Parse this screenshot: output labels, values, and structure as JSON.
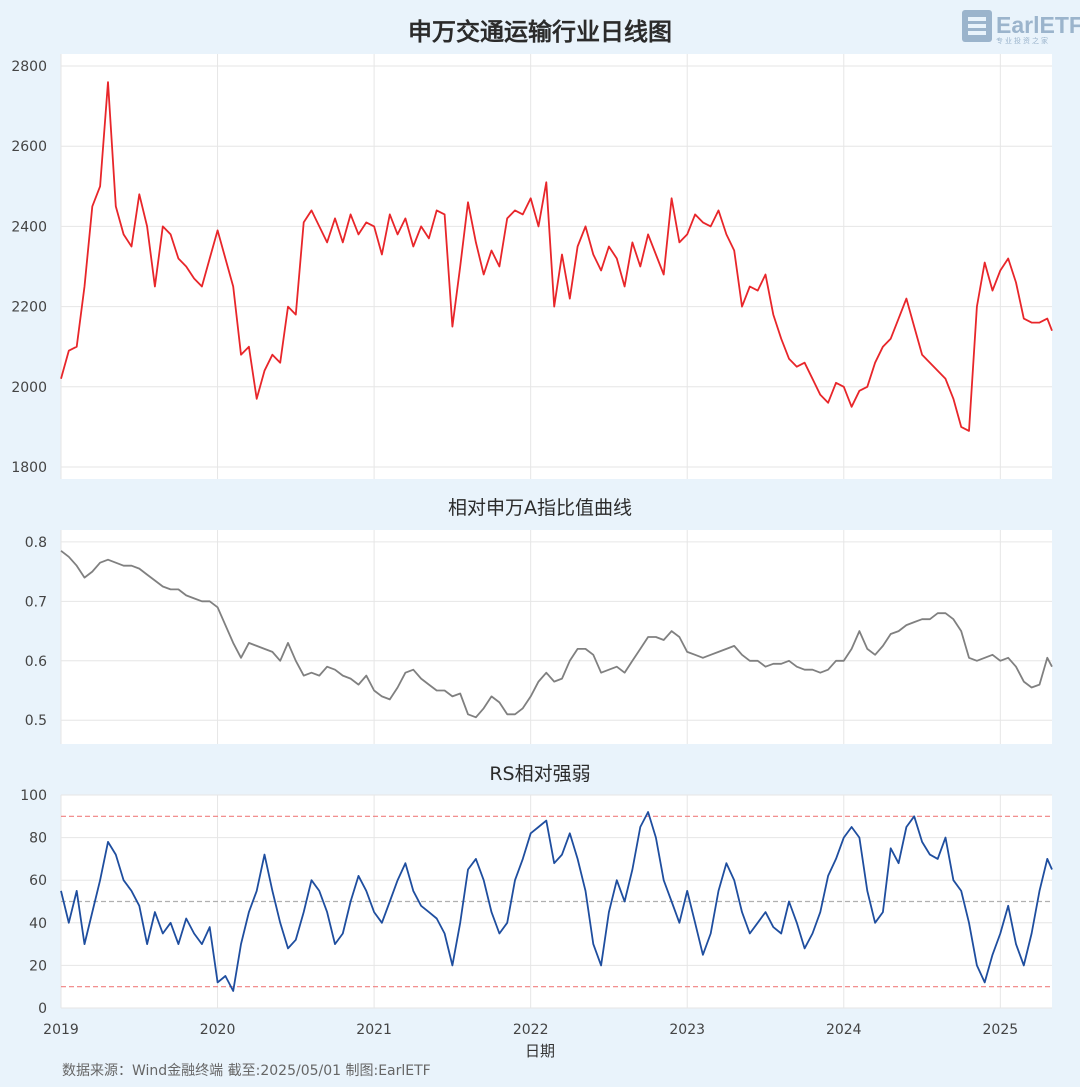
{
  "logo": {
    "text": "EarlETF",
    "subtext": "专业投资之家"
  },
  "footer": {
    "xlabel": "日期",
    "source": "数据来源：Wind金融终端 截至:2025/05/01 制图:EarlETF"
  },
  "chart_data": [
    {
      "type": "line",
      "title": "申万交通运输行业日线图",
      "color": "#e8262a",
      "ylim": [
        1770,
        2830
      ],
      "yticks": [
        1800,
        2000,
        2200,
        2400,
        2600,
        2800
      ],
      "grid": true,
      "x": [
        2019.0,
        2019.05,
        2019.1,
        2019.15,
        2019.2,
        2019.25,
        2019.3,
        2019.35,
        2019.4,
        2019.45,
        2019.5,
        2019.55,
        2019.6,
        2019.65,
        2019.7,
        2019.75,
        2019.8,
        2019.85,
        2019.9,
        2019.95,
        2020.0,
        2020.05,
        2020.1,
        2020.15,
        2020.2,
        2020.25,
        2020.3,
        2020.35,
        2020.4,
        2020.45,
        2020.5,
        2020.55,
        2020.6,
        2020.65,
        2020.7,
        2020.75,
        2020.8,
        2020.85,
        2020.9,
        2020.95,
        2021.0,
        2021.05,
        2021.1,
        2021.15,
        2021.2,
        2021.25,
        2021.3,
        2021.35,
        2021.4,
        2021.45,
        2021.5,
        2021.55,
        2021.6,
        2021.65,
        2021.7,
        2021.75,
        2021.8,
        2021.85,
        2021.9,
        2021.95,
        2022.0,
        2022.05,
        2022.1,
        2022.15,
        2022.2,
        2022.25,
        2022.3,
        2022.35,
        2022.4,
        2022.45,
        2022.5,
        2022.55,
        2022.6,
        2022.65,
        2022.7,
        2022.75,
        2022.8,
        2022.85,
        2022.9,
        2022.95,
        2023.0,
        2023.05,
        2023.1,
        2023.15,
        2023.2,
        2023.25,
        2023.3,
        2023.35,
        2023.4,
        2023.45,
        2023.5,
        2023.55,
        2023.6,
        2023.65,
        2023.7,
        2023.75,
        2023.8,
        2023.85,
        2023.9,
        2023.95,
        2024.0,
        2024.05,
        2024.1,
        2024.15,
        2024.2,
        2024.25,
        2024.3,
        2024.35,
        2024.4,
        2024.45,
        2024.5,
        2024.55,
        2024.6,
        2024.65,
        2024.7,
        2024.75,
        2024.8,
        2024.85,
        2024.9,
        2024.95,
        2025.0,
        2025.05,
        2025.1,
        2025.15,
        2025.2,
        2025.25,
        2025.3,
        2025.33
      ],
      "y": [
        2020,
        2090,
        2100,
        2250,
        2450,
        2500,
        2760,
        2450,
        2380,
        2350,
        2480,
        2400,
        2250,
        2400,
        2380,
        2320,
        2300,
        2270,
        2250,
        2320,
        2390,
        2320,
        2250,
        2080,
        2100,
        1970,
        2040,
        2080,
        2060,
        2200,
        2180,
        2410,
        2440,
        2400,
        2360,
        2420,
        2360,
        2430,
        2380,
        2410,
        2400,
        2330,
        2430,
        2380,
        2420,
        2350,
        2400,
        2370,
        2440,
        2430,
        2150,
        2300,
        2460,
        2360,
        2280,
        2340,
        2300,
        2420,
        2440,
        2430,
        2470,
        2400,
        2510,
        2200,
        2330,
        2220,
        2350,
        2400,
        2330,
        2290,
        2350,
        2320,
        2250,
        2360,
        2300,
        2380,
        2330,
        2280,
        2470,
        2360,
        2380,
        2430,
        2410,
        2400,
        2440,
        2380,
        2340,
        2200,
        2250,
        2240,
        2280,
        2180,
        2120,
        2070,
        2050,
        2060,
        2020,
        1980,
        1960,
        2010,
        2000,
        1950,
        1990,
        2000,
        2060,
        2100,
        2120,
        2170,
        2220,
        2150,
        2080,
        2060,
        2040,
        2020,
        1970,
        1900,
        1890,
        2200,
        2310,
        2240,
        2290,
        2320,
        2260,
        2170,
        2160,
        2160,
        2170,
        2140
      ]
    },
    {
      "type": "line",
      "title": "相对申万A指比值曲线",
      "color": "#808080",
      "ylim": [
        0.46,
        0.82
      ],
      "yticks": [
        0.5,
        0.6,
        0.7,
        0.8
      ],
      "grid": true,
      "x": [
        2019.0,
        2019.05,
        2019.1,
        2019.15,
        2019.2,
        2019.25,
        2019.3,
        2019.35,
        2019.4,
        2019.45,
        2019.5,
        2019.55,
        2019.6,
        2019.65,
        2019.7,
        2019.75,
        2019.8,
        2019.85,
        2019.9,
        2019.95,
        2020.0,
        2020.05,
        2020.1,
        2020.15,
        2020.2,
        2020.25,
        2020.3,
        2020.35,
        2020.4,
        2020.45,
        2020.5,
        2020.55,
        2020.6,
        2020.65,
        2020.7,
        2020.75,
        2020.8,
        2020.85,
        2020.9,
        2020.95,
        2021.0,
        2021.05,
        2021.1,
        2021.15,
        2021.2,
        2021.25,
        2021.3,
        2021.35,
        2021.4,
        2021.45,
        2021.5,
        2021.55,
        2021.6,
        2021.65,
        2021.7,
        2021.75,
        2021.8,
        2021.85,
        2021.9,
        2021.95,
        2022.0,
        2022.05,
        2022.1,
        2022.15,
        2022.2,
        2022.25,
        2022.3,
        2022.35,
        2022.4,
        2022.45,
        2022.5,
        2022.55,
        2022.6,
        2022.65,
        2022.7,
        2022.75,
        2022.8,
        2022.85,
        2022.9,
        2022.95,
        2023.0,
        2023.05,
        2023.1,
        2023.15,
        2023.2,
        2023.25,
        2023.3,
        2023.35,
        2023.4,
        2023.45,
        2023.5,
        2023.55,
        2023.6,
        2023.65,
        2023.7,
        2023.75,
        2023.8,
        2023.85,
        2023.9,
        2023.95,
        2024.0,
        2024.05,
        2024.1,
        2024.15,
        2024.2,
        2024.25,
        2024.3,
        2024.35,
        2024.4,
        2024.45,
        2024.5,
        2024.55,
        2024.6,
        2024.65,
        2024.7,
        2024.75,
        2024.8,
        2024.85,
        2024.9,
        2024.95,
        2025.0,
        2025.05,
        2025.1,
        2025.15,
        2025.2,
        2025.25,
        2025.3,
        2025.33
      ],
      "y": [
        0.785,
        0.775,
        0.76,
        0.74,
        0.75,
        0.765,
        0.77,
        0.765,
        0.76,
        0.76,
        0.755,
        0.745,
        0.735,
        0.725,
        0.72,
        0.72,
        0.71,
        0.705,
        0.7,
        0.7,
        0.69,
        0.66,
        0.63,
        0.605,
        0.63,
        0.625,
        0.62,
        0.615,
        0.6,
        0.63,
        0.6,
        0.575,
        0.58,
        0.575,
        0.59,
        0.585,
        0.575,
        0.57,
        0.56,
        0.575,
        0.55,
        0.54,
        0.535,
        0.555,
        0.58,
        0.585,
        0.57,
        0.56,
        0.55,
        0.55,
        0.54,
        0.545,
        0.51,
        0.505,
        0.52,
        0.54,
        0.53,
        0.51,
        0.51,
        0.52,
        0.54,
        0.565,
        0.58,
        0.565,
        0.57,
        0.6,
        0.62,
        0.62,
        0.61,
        0.58,
        0.585,
        0.59,
        0.58,
        0.6,
        0.62,
        0.64,
        0.64,
        0.635,
        0.65,
        0.64,
        0.615,
        0.61,
        0.605,
        0.61,
        0.615,
        0.62,
        0.625,
        0.61,
        0.6,
        0.6,
        0.59,
        0.595,
        0.595,
        0.6,
        0.59,
        0.585,
        0.585,
        0.58,
        0.585,
        0.6,
        0.6,
        0.62,
        0.65,
        0.62,
        0.61,
        0.625,
        0.645,
        0.65,
        0.66,
        0.665,
        0.67,
        0.67,
        0.68,
        0.68,
        0.67,
        0.65,
        0.605,
        0.6,
        0.605,
        0.61,
        0.6,
        0.605,
        0.59,
        0.565,
        0.555,
        0.56,
        0.605,
        0.59
      ]
    },
    {
      "type": "line",
      "title": "RS相对强弱",
      "color": "#1f4e9f",
      "ylim": [
        0,
        100
      ],
      "yticks": [
        0,
        20,
        40,
        60,
        80,
        100
      ],
      "grid": true,
      "reference_lines": [
        {
          "y": 90,
          "color": "#f08080",
          "style": "dashed"
        },
        {
          "y": 50,
          "color": "#b0b0b0",
          "style": "dashed"
        },
        {
          "y": 10,
          "color": "#f08080",
          "style": "dashed"
        }
      ],
      "xticks": [
        "2019",
        "2020",
        "2021",
        "2022",
        "2023",
        "2024",
        "2025"
      ],
      "xlim": [
        2019.0,
        2025.33
      ],
      "x": [
        2019.0,
        2019.05,
        2019.1,
        2019.15,
        2019.2,
        2019.25,
        2019.3,
        2019.35,
        2019.4,
        2019.45,
        2019.5,
        2019.55,
        2019.6,
        2019.65,
        2019.7,
        2019.75,
        2019.8,
        2019.85,
        2019.9,
        2019.95,
        2020.0,
        2020.05,
        2020.1,
        2020.15,
        2020.2,
        2020.25,
        2020.3,
        2020.35,
        2020.4,
        2020.45,
        2020.5,
        2020.55,
        2020.6,
        2020.65,
        2020.7,
        2020.75,
        2020.8,
        2020.85,
        2020.9,
        2020.95,
        2021.0,
        2021.05,
        2021.1,
        2021.15,
        2021.2,
        2021.25,
        2021.3,
        2021.35,
        2021.4,
        2021.45,
        2021.5,
        2021.55,
        2021.6,
        2021.65,
        2021.7,
        2021.75,
        2021.8,
        2021.85,
        2021.9,
        2021.95,
        2022.0,
        2022.05,
        2022.1,
        2022.15,
        2022.2,
        2022.25,
        2022.3,
        2022.35,
        2022.4,
        2022.45,
        2022.5,
        2022.55,
        2022.6,
        2022.65,
        2022.7,
        2022.75,
        2022.8,
        2022.85,
        2022.9,
        2022.95,
        2023.0,
        2023.05,
        2023.1,
        2023.15,
        2023.2,
        2023.25,
        2023.3,
        2023.35,
        2023.4,
        2023.45,
        2023.5,
        2023.55,
        2023.6,
        2023.65,
        2023.7,
        2023.75,
        2023.8,
        2023.85,
        2023.9,
        2023.95,
        2024.0,
        2024.05,
        2024.1,
        2024.15,
        2024.2,
        2024.25,
        2024.3,
        2024.35,
        2024.4,
        2024.45,
        2024.5,
        2024.55,
        2024.6,
        2024.65,
        2024.7,
        2024.75,
        2024.8,
        2024.85,
        2024.9,
        2024.95,
        2025.0,
        2025.05,
        2025.1,
        2025.15,
        2025.2,
        2025.25,
        2025.3,
        2025.33
      ],
      "y": [
        55,
        40,
        55,
        30,
        45,
        60,
        78,
        72,
        60,
        55,
        48,
        30,
        45,
        35,
        40,
        30,
        42,
        35,
        30,
        38,
        12,
        15,
        8,
        30,
        45,
        55,
        72,
        55,
        40,
        28,
        32,
        45,
        60,
        55,
        45,
        30,
        35,
        50,
        62,
        55,
        45,
        40,
        50,
        60,
        68,
        55,
        48,
        45,
        42,
        35,
        20,
        40,
        65,
        70,
        60,
        45,
        35,
        40,
        60,
        70,
        82,
        85,
        88,
        68,
        72,
        82,
        70,
        55,
        30,
        20,
        45,
        60,
        50,
        65,
        85,
        92,
        80,
        60,
        50,
        40,
        55,
        40,
        25,
        35,
        55,
        68,
        60,
        45,
        35,
        40,
        45,
        38,
        35,
        50,
        40,
        28,
        35,
        45,
        62,
        70,
        80,
        85,
        80,
        55,
        40,
        45,
        75,
        68,
        85,
        90,
        78,
        72,
        70,
        80,
        60,
        55,
        40,
        20,
        12,
        25,
        35,
        48,
        30,
        20,
        35,
        55,
        70,
        65
      ]
    }
  ]
}
